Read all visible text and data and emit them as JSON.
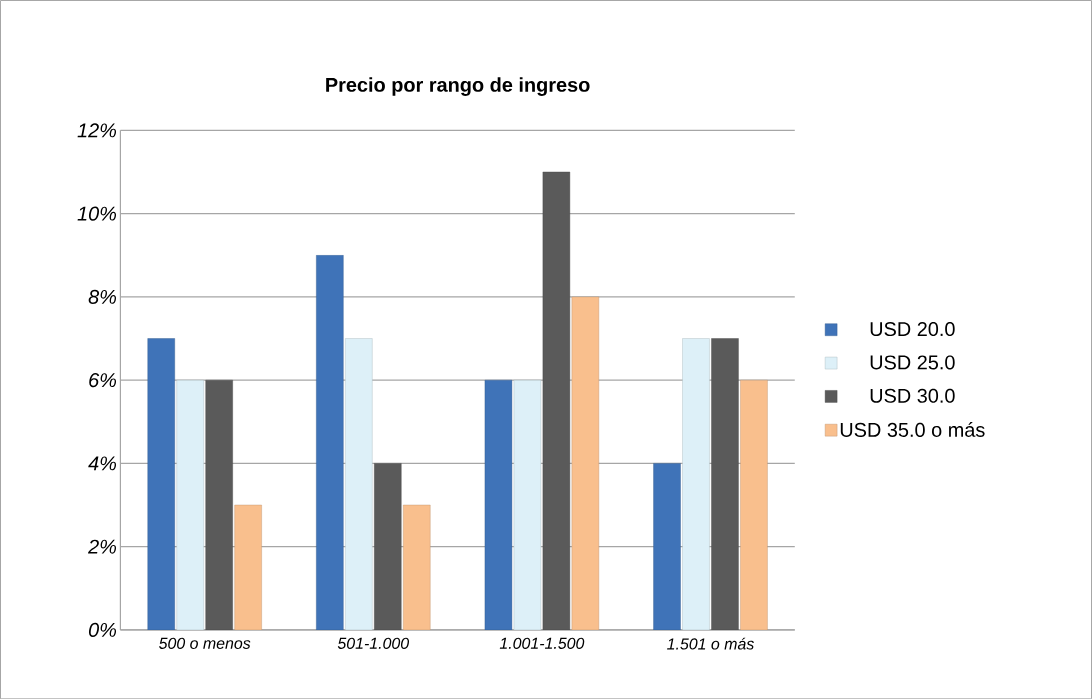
{
  "chart_data": {
    "type": "bar",
    "title": "Precio por rango de ingreso",
    "categories": [
      "500 o menos",
      "501-1.000",
      "1.001-1.500",
      "1.501 o más"
    ],
    "series": [
      {
        "name": "USD 20.0",
        "color": "#3f73b8",
        "values": [
          7,
          9,
          6,
          4
        ]
      },
      {
        "name": "USD 25.0",
        "color": "#ddf0f8",
        "values": [
          6,
          7,
          6,
          7
        ]
      },
      {
        "name": "USD 30.0",
        "color": "#5a5a5a",
        "values": [
          6,
          4,
          11,
          7
        ]
      },
      {
        "name": "USD 35.0 o más",
        "color": "#f9bf8d",
        "values": [
          3,
          3,
          8,
          6
        ]
      }
    ],
    "ylim": [
      0,
      12
    ],
    "yticks": [
      {
        "value": 0,
        "label": "0%"
      },
      {
        "value": 2,
        "label": "2%"
      },
      {
        "value": 4,
        "label": "4%"
      },
      {
        "value": 6,
        "label": "6%"
      },
      {
        "value": 8,
        "label": "8%"
      },
      {
        "value": 10,
        "label": "10%"
      },
      {
        "value": 12,
        "label": "12%"
      }
    ],
    "grid": "y",
    "legend": "right"
  }
}
